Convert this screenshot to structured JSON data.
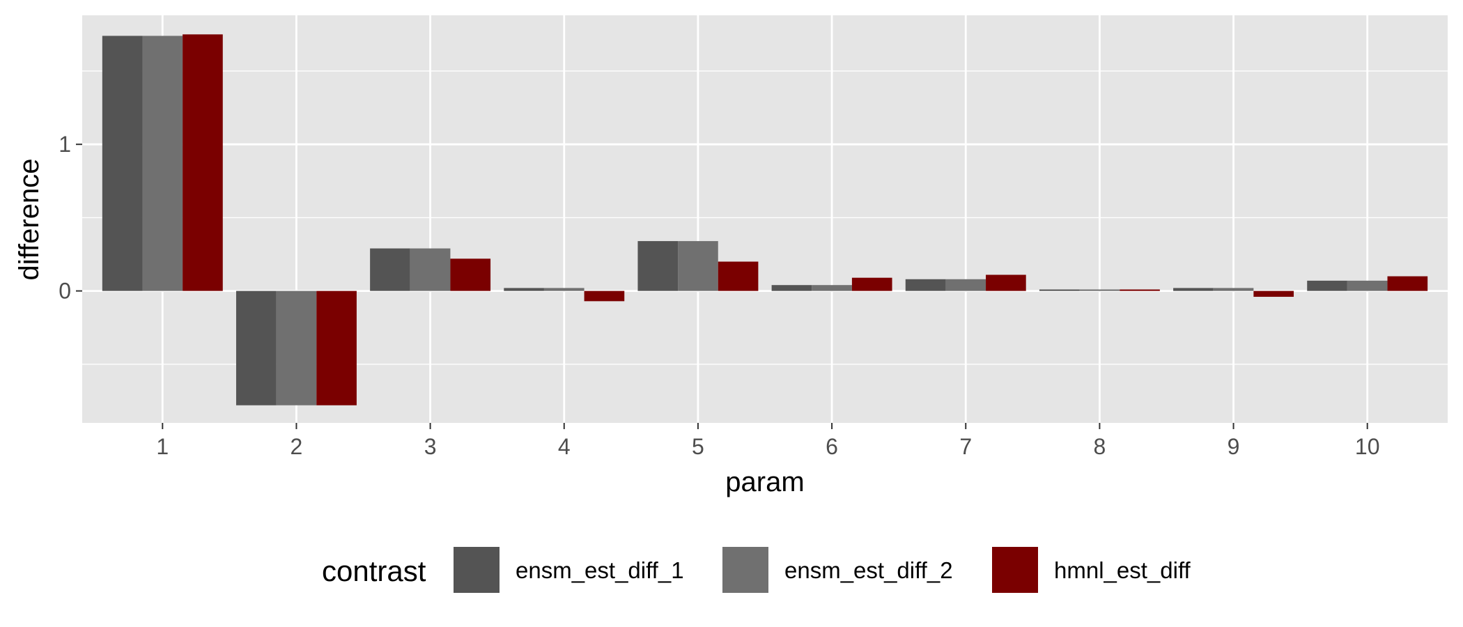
{
  "chart_data": {
    "type": "bar",
    "xlabel": "param",
    "ylabel": "difference",
    "categories": [
      "1",
      "2",
      "3",
      "4",
      "5",
      "6",
      "7",
      "8",
      "9",
      "10"
    ],
    "yticks": [
      {
        "value": 0,
        "label": "0"
      },
      {
        "value": 1,
        "label": "1"
      }
    ],
    "ylim": [
      -0.9,
      1.88
    ],
    "grid": true,
    "legend": {
      "title": "contrast",
      "position": "bottom"
    },
    "series": [
      {
        "name": "ensm_est_diff_1",
        "color": "#545454",
        "values": [
          1.74,
          -0.78,
          0.29,
          0.02,
          0.34,
          0.04,
          0.08,
          0.01,
          0.02,
          0.07
        ]
      },
      {
        "name": "ensm_est_diff_2",
        "color": "#707070",
        "values": [
          1.74,
          -0.78,
          0.29,
          0.02,
          0.34,
          0.04,
          0.08,
          0.01,
          0.02,
          0.07
        ]
      },
      {
        "name": "hmnl_est_diff",
        "color": "#7a0000",
        "values": [
          1.75,
          -0.78,
          0.22,
          -0.07,
          0.2,
          0.09,
          0.11,
          0.01,
          -0.04,
          0.1
        ]
      }
    ]
  },
  "colors": {
    "panel_background": "#e5e5e5",
    "grid_line": "#ffffff"
  }
}
